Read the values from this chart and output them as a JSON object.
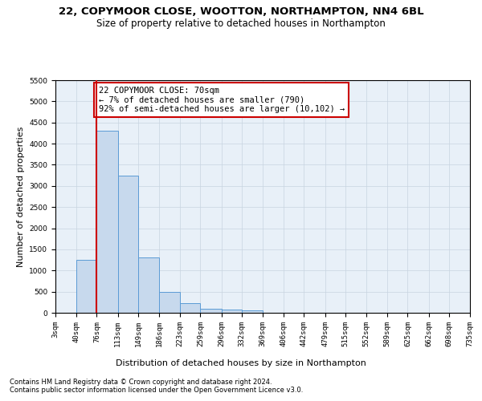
{
  "title1": "22, COPYMOOR CLOSE, WOOTTON, NORTHAMPTON, NN4 6BL",
  "title2": "Size of property relative to detached houses in Northampton",
  "xlabel": "Distribution of detached houses by size in Northampton",
  "ylabel": "Number of detached properties",
  "footnote1": "Contains HM Land Registry data © Crown copyright and database right 2024.",
  "footnote2": "Contains public sector information licensed under the Open Government Licence v3.0.",
  "bar_edges": [
    3,
    40,
    76,
    113,
    149,
    186,
    223,
    259,
    296,
    332,
    369,
    406,
    442,
    479,
    515,
    552,
    589,
    625,
    662,
    698,
    735
  ],
  "bar_heights": [
    0,
    1250,
    4300,
    3250,
    1300,
    500,
    225,
    100,
    75,
    50,
    0,
    0,
    0,
    0,
    0,
    0,
    0,
    0,
    0,
    0
  ],
  "bar_color": "#c7d9ed",
  "bar_edgecolor": "#5b9bd5",
  "property_line_x": 76,
  "property_line_color": "#cc0000",
  "annotation_text": "22 COPYMOOR CLOSE: 70sqm\n← 7% of detached houses are smaller (790)\n92% of semi-detached houses are larger (10,102) →",
  "annotation_box_color": "#cc0000",
  "ylim": [
    0,
    5500
  ],
  "yticks": [
    0,
    500,
    1000,
    1500,
    2000,
    2500,
    3000,
    3500,
    4000,
    4500,
    5000,
    5500
  ],
  "tick_labels": [
    "3sqm",
    "40sqm",
    "76sqm",
    "113sqm",
    "149sqm",
    "186sqm",
    "223sqm",
    "259sqm",
    "296sqm",
    "332sqm",
    "369sqm",
    "406sqm",
    "442sqm",
    "479sqm",
    "515sqm",
    "552sqm",
    "589sqm",
    "625sqm",
    "662sqm",
    "698sqm",
    "735sqm"
  ],
  "bg_color": "#ffffff",
  "plot_bg_color": "#e8f0f8",
  "grid_color": "#c8d4e0",
  "title1_fontsize": 9.5,
  "title2_fontsize": 8.5,
  "axis_label_fontsize": 8,
  "tick_fontsize": 6.5,
  "annot_fontsize": 7.5,
  "footnote_fontsize": 6
}
